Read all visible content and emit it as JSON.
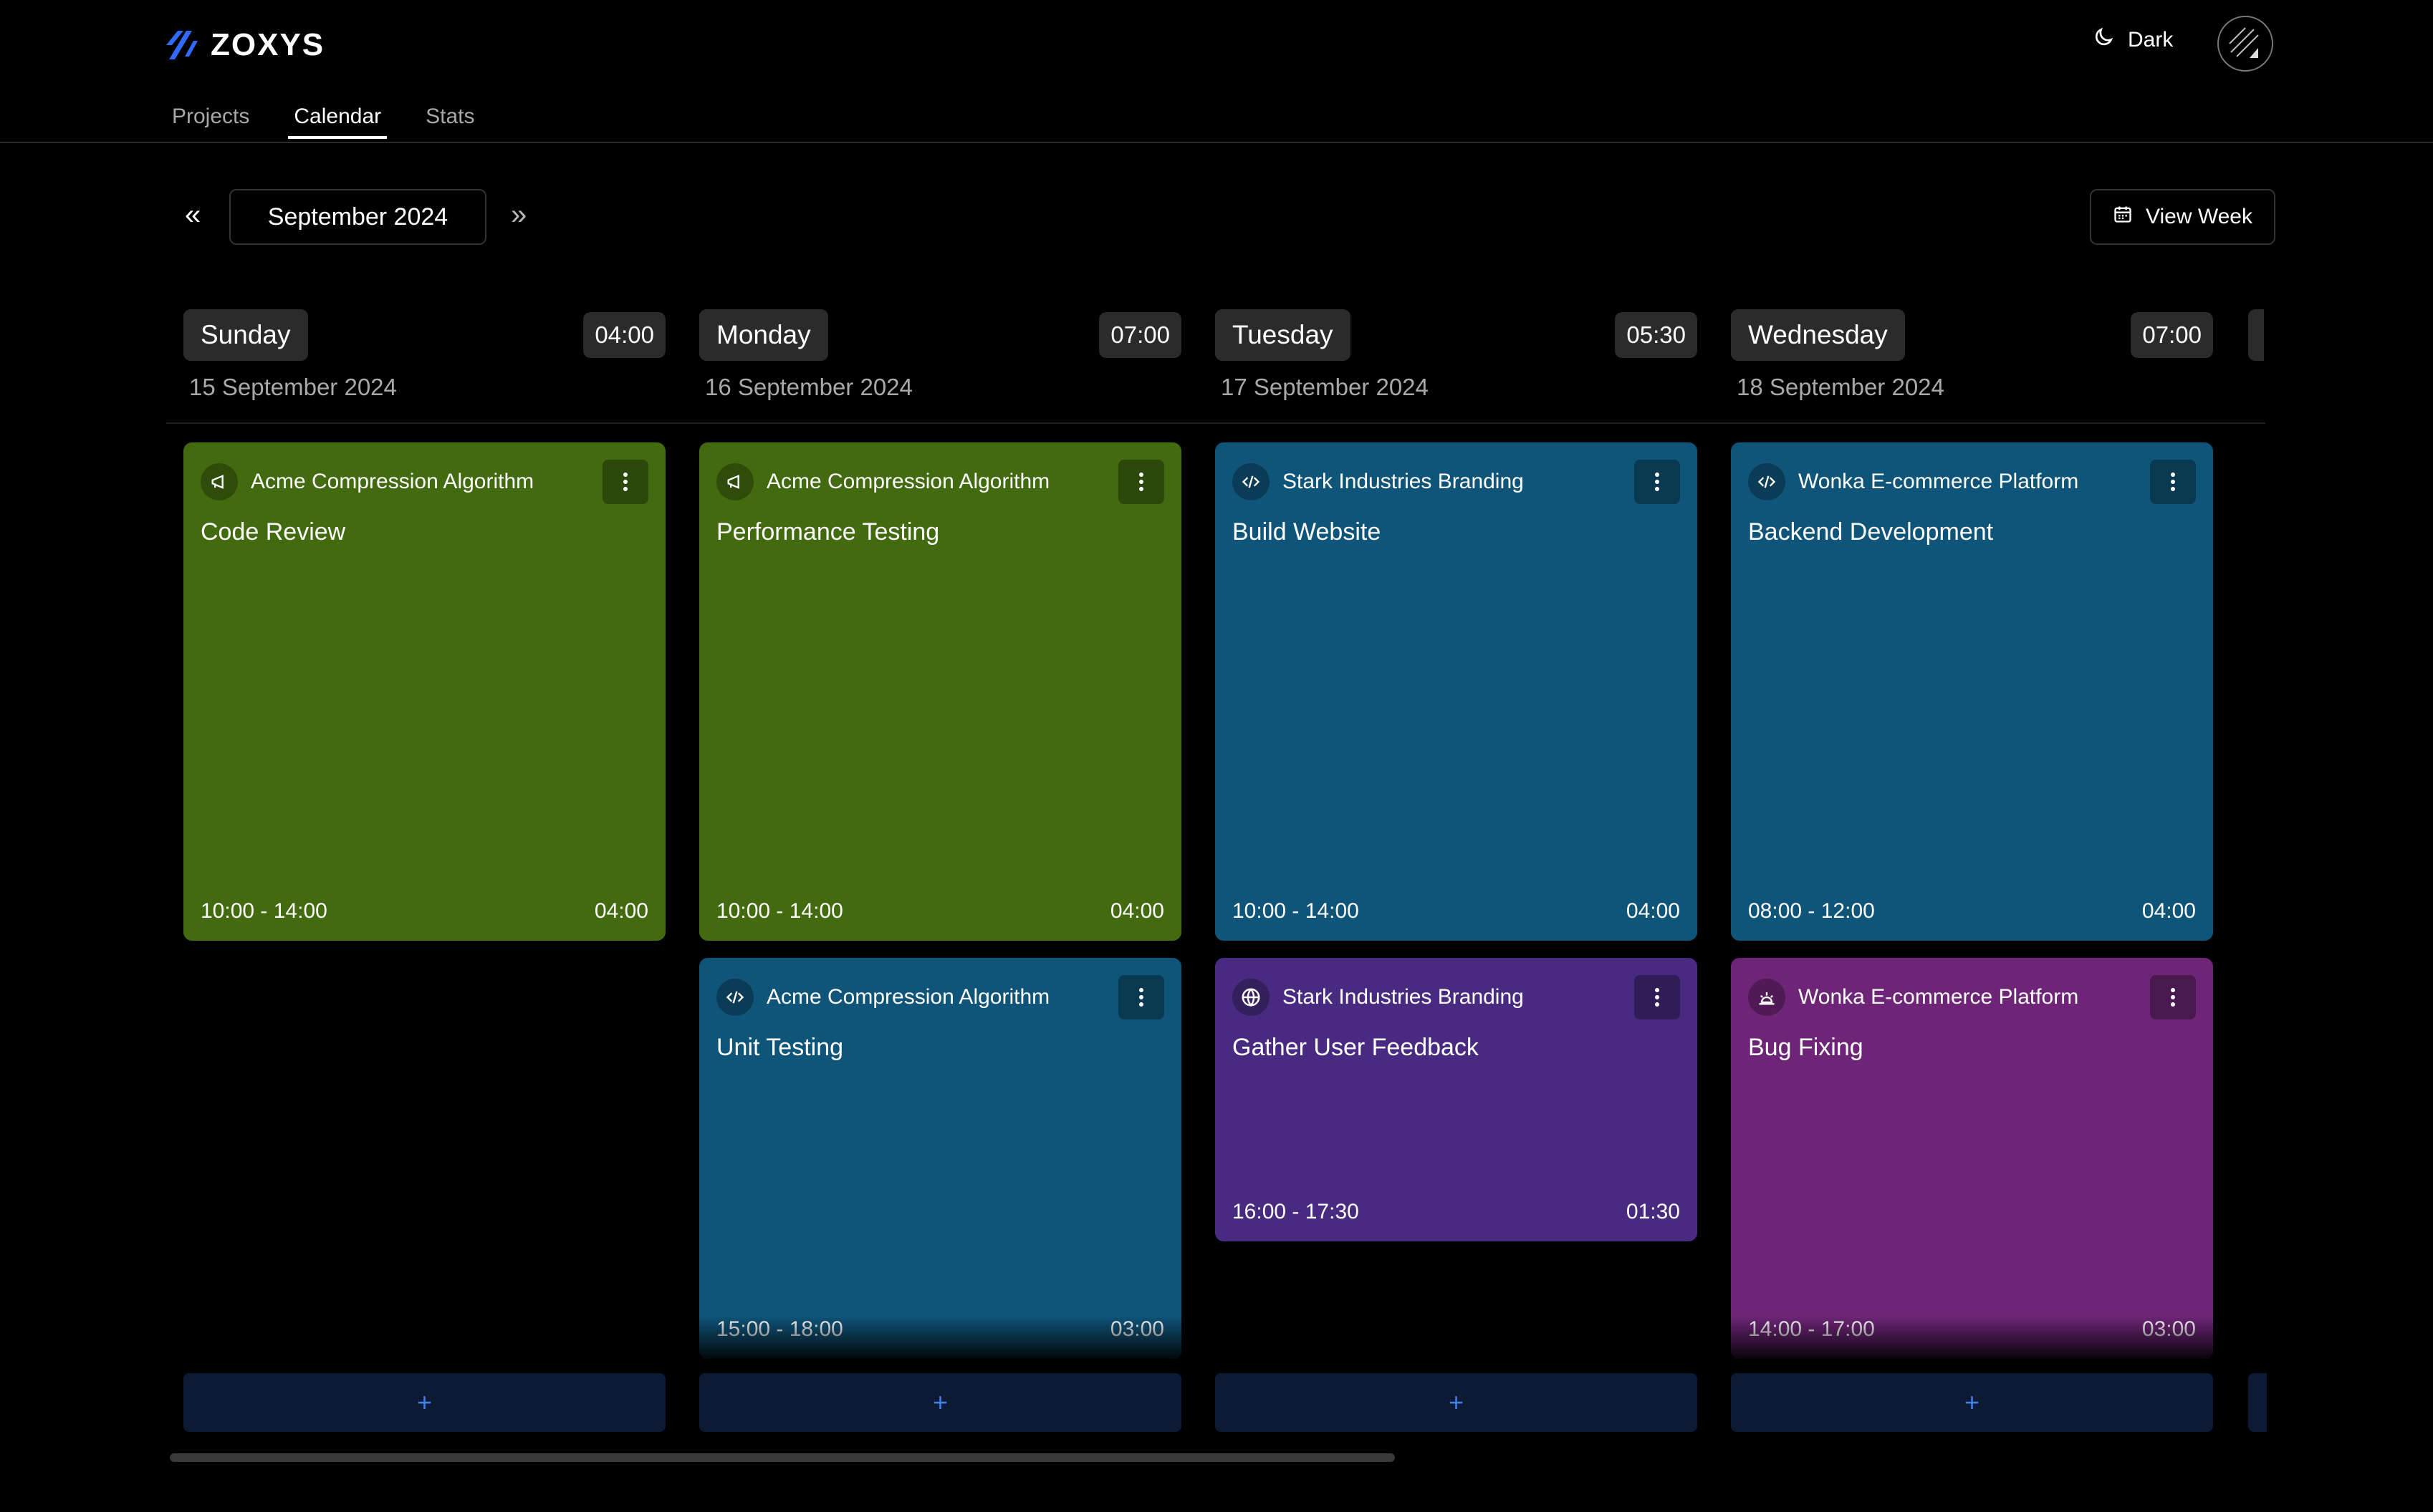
{
  "header": {
    "brand": "ZOXYS",
    "theme_label": "Dark"
  },
  "nav": {
    "tabs": [
      "Projects",
      "Calendar",
      "Stats"
    ],
    "active": "Calendar"
  },
  "toolbar": {
    "prev": "«",
    "next": "»",
    "month": "September 2024",
    "view_week": "View Week"
  },
  "days": [
    {
      "name": "Sunday",
      "total": "04:00",
      "date": "15 September 2024",
      "cards": [
        {
          "project": "Acme Compression Algorithm",
          "icon": "megaphone-icon",
          "task": "Code Review",
          "time": "10:00 - 14:00",
          "duration": "04:00",
          "color": "#426a0f"
        }
      ]
    },
    {
      "name": "Monday",
      "total": "07:00",
      "date": "16 September 2024",
      "cards": [
        {
          "project": "Acme Compression Algorithm",
          "icon": "megaphone-icon",
          "task": "Performance Testing",
          "time": "10:00 - 14:00",
          "duration": "04:00",
          "color": "#426a0f"
        },
        {
          "project": "Acme Compression Algorithm",
          "icon": "code-icon",
          "task": "Unit Testing",
          "time": "15:00 - 18:00",
          "duration": "03:00",
          "color": "#0f5479"
        }
      ]
    },
    {
      "name": "Tuesday",
      "total": "05:30",
      "date": "17 September 2024",
      "cards": [
        {
          "project": "Stark Industries Branding",
          "icon": "code-icon",
          "task": "Build Website",
          "time": "10:00 - 14:00",
          "duration": "04:00",
          "color": "#0f5479"
        },
        {
          "project": "Stark Industries Branding",
          "icon": "globe-icon",
          "task": "Gather User Feedback",
          "time": "16:00 - 17:30",
          "duration": "01:30",
          "color": "#482a80"
        }
      ]
    },
    {
      "name": "Wednesday",
      "total": "07:00",
      "date": "18 September 2024",
      "cards": [
        {
          "project": "Wonka E-commerce Platform",
          "icon": "code-icon",
          "task": "Backend Development",
          "time": "08:00 - 12:00",
          "duration": "04:00",
          "color": "#0f5479"
        },
        {
          "project": "Wonka E-commerce Platform",
          "icon": "bug-icon",
          "task": "Bug Fixing",
          "time": "14:00 - 17:00",
          "duration": "03:00",
          "color": "#6e2577"
        }
      ]
    }
  ],
  "add_label": "+"
}
